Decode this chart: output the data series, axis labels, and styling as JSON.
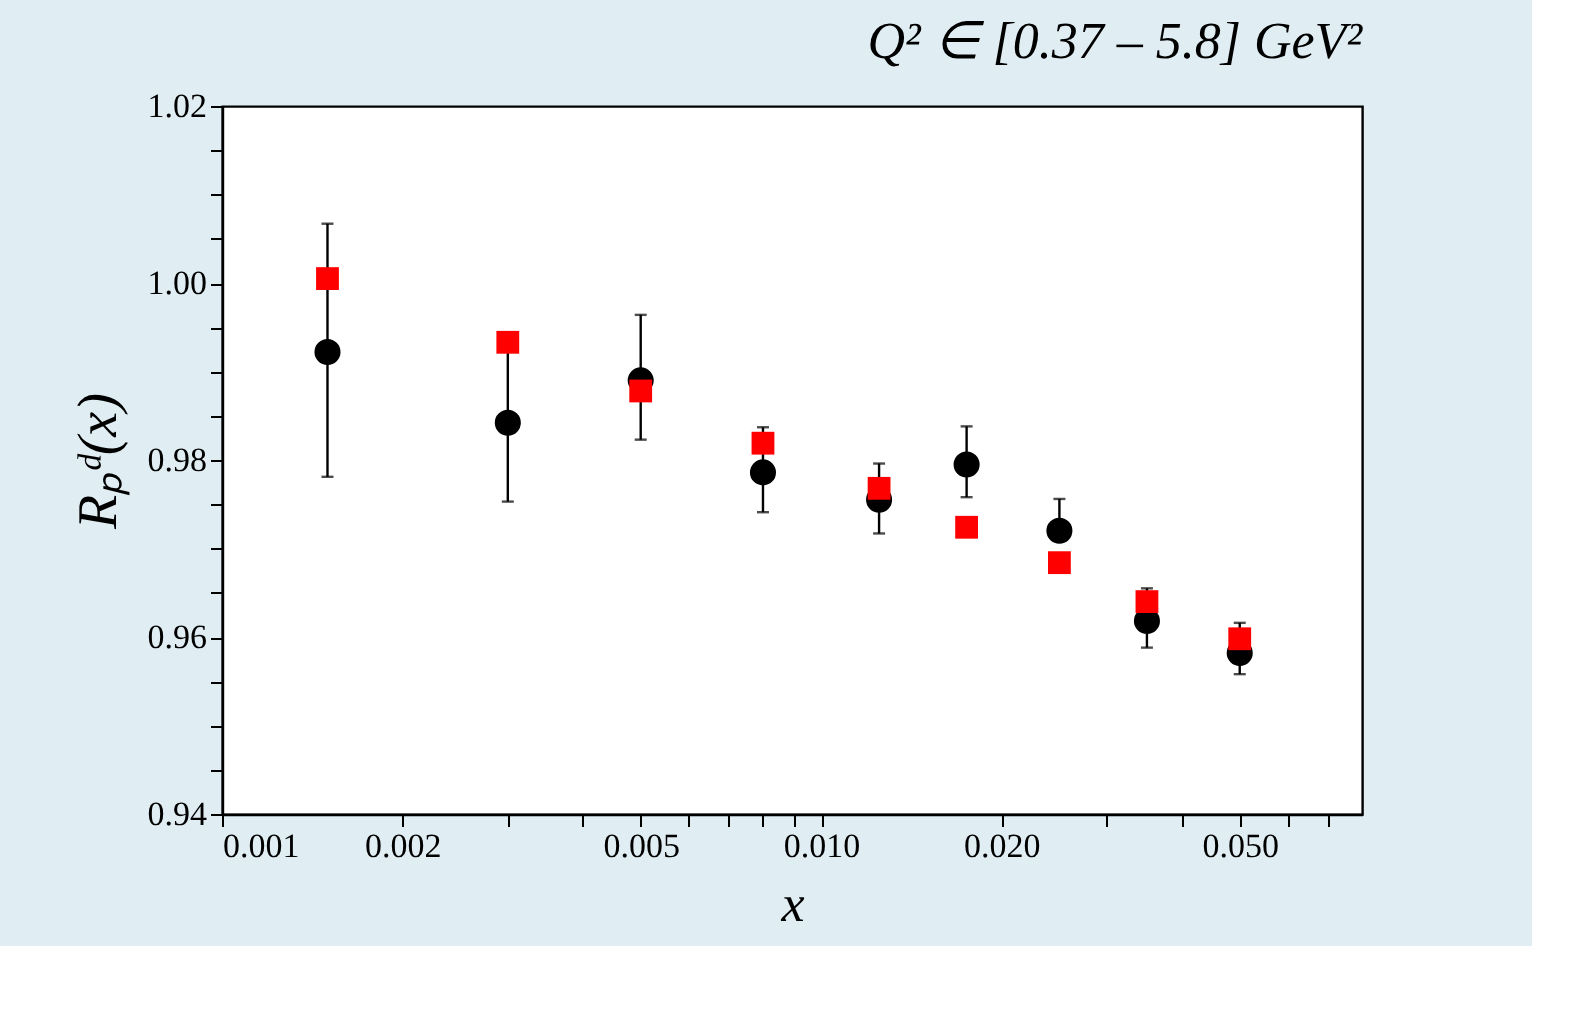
{
  "chart_data": {
    "type": "scatter",
    "title": "Q² ∈ [0.37 – 5.8] GeV²",
    "xlabel": "x",
    "ylabel": "Rₚᵈ(x)",
    "x": [
      0.0015,
      0.003,
      0.005,
      0.008,
      0.0125,
      0.0175,
      0.025,
      0.035,
      0.05
    ],
    "series": [
      {
        "color": "#000000",
        "marker": "circle",
        "values": [
          0.9922,
          0.9842,
          0.989,
          0.9786,
          0.9755,
          0.9795,
          0.972,
          0.9618,
          0.9582
        ],
        "errors": [
          [
            0.9781,
            1.0067
          ],
          [
            0.9753,
            0.9942
          ],
          [
            0.9823,
            0.9964
          ],
          [
            0.9741,
            0.9837
          ],
          [
            0.9717,
            0.9796
          ],
          [
            0.9758,
            0.9838
          ],
          [
            0.972,
            0.9756
          ],
          [
            0.9588,
            0.9655
          ],
          [
            0.9558,
            0.9616
          ]
        ]
      },
      {
        "color": "#ff0000",
        "marker": "square",
        "values": [
          1.0005,
          0.9933,
          0.9878,
          0.9819,
          0.9768,
          0.9724,
          0.9684,
          0.964,
          0.9598
        ]
      }
    ],
    "log": "x",
    "xlim": [
      0.001,
      0.08
    ],
    "xticks": [
      0.001,
      0.002,
      {
        "value": 0.003,
        "label": null
      },
      {
        "value": 0.004,
        "label": null
      },
      0.005,
      {
        "value": 0.006,
        "label": null
      },
      {
        "value": 0.007,
        "label": null
      },
      {
        "value": 0.008,
        "label": null
      },
      {
        "value": 0.009,
        "label": null
      },
      {
        "value": 0.01,
        "label": "0.010"
      },
      {
        "value": 0.02,
        "label": "0.020"
      },
      {
        "value": 0.03,
        "label": null
      },
      {
        "value": 0.04,
        "label": null
      },
      {
        "value": 0.05,
        "label": "0.050"
      },
      {
        "value": 0.06,
        "label": null
      },
      {
        "value": 0.07,
        "label": null
      }
    ],
    "ylim": [
      0.94,
      1.02
    ],
    "yticks": [
      0.94,
      {
        "value": 0.945,
        "label": null
      },
      {
        "value": 0.95,
        "label": null
      },
      {
        "value": 0.955,
        "label": null
      },
      0.96,
      {
        "value": 0.965,
        "label": null
      },
      {
        "value": 0.97,
        "label": null
      },
      {
        "value": 0.975,
        "label": null
      },
      0.98,
      {
        "value": 0.985,
        "label": null
      },
      {
        "value": 0.99,
        "label": null
      },
      {
        "value": 0.995,
        "label": null
      },
      {
        "value": 1.0,
        "label": "1.00"
      },
      {
        "value": 1.005,
        "label": null
      },
      {
        "value": 1.01,
        "label": null
      },
      {
        "value": 1.015,
        "label": null
      },
      1.02
    ],
    "grid": false
  }
}
